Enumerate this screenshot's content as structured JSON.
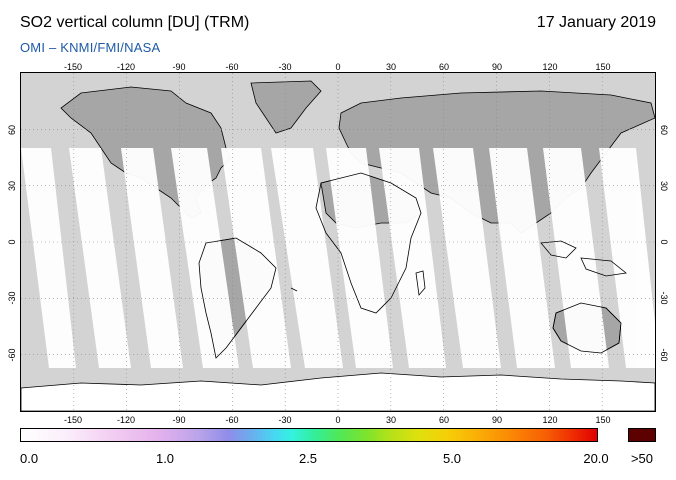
{
  "header": {
    "title": "SO2 vertical column [DU] (TRM)",
    "date": "17 January 2019",
    "credit": "OMI  –  KNMI/FMI/NASA"
  },
  "map": {
    "projection": "equirectangular",
    "lon_range": [
      -180,
      180
    ],
    "lat_range": [
      -90,
      90
    ],
    "lon_ticks": [
      "-150",
      "-120",
      "-90",
      "-60",
      "-30",
      "0",
      "30",
      "60",
      "90",
      "120",
      "150"
    ],
    "lat_ticks": [
      "60",
      "30",
      "0",
      "-30",
      "-60"
    ],
    "colors": {
      "no_data": "#d3d3d3",
      "land_no_data": "#a6a6a6",
      "land_swath": "#ffffff",
      "ocean_swath": "#ffffff",
      "coastline": "#000000"
    }
  },
  "colorbar": {
    "labels": [
      "0.0",
      "1.0",
      "2.5",
      "5.0",
      "20.0",
      ">50"
    ],
    "over_color": "#5c0000"
  }
}
